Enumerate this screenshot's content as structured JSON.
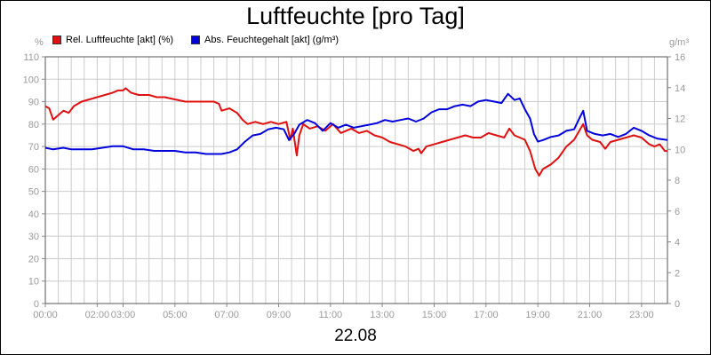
{
  "title": "Luftfeuchte [pro Tag]",
  "date_label": "22.08",
  "legend": [
    {
      "label": "Rel. Luftfeuchte [akt] (%)",
      "color": "#e01010"
    },
    {
      "label": "Abs. Feuchtegehalt [akt] (g/m³)",
      "color": "#0000dd"
    }
  ],
  "units": {
    "left": "%",
    "right": "g/m³"
  },
  "chart_data": {
    "type": "line",
    "title": "Luftfeuchte [pro Tag]",
    "xlabel": "22.08",
    "x_ticks": [
      "00:00",
      "02:00",
      "03:00",
      "05:00",
      "07:00",
      "09:00",
      "11:00",
      "13:00",
      "15:00",
      "17:00",
      "19:00",
      "21:00",
      "23:00"
    ],
    "x_tick_hours": [
      0,
      2,
      3,
      5,
      7,
      9,
      11,
      13,
      15,
      17,
      19,
      21,
      23
    ],
    "xlim_hours": [
      0,
      24
    ],
    "y_left": {
      "unit": "%",
      "lim": [
        0,
        110
      ],
      "ticks": [
        "0",
        "10",
        "20",
        "30",
        "40",
        "50",
        "60",
        "70",
        "80",
        "90",
        "100",
        "110"
      ]
    },
    "y_right": {
      "unit": "g/m³",
      "lim": [
        0,
        16
      ],
      "ticks": [
        "0",
        "2",
        "4",
        "6",
        "8",
        "10",
        "12",
        "14",
        "16"
      ]
    },
    "grid": true,
    "legend_position": "top-left",
    "series": [
      {
        "name": "Rel. Luftfeuchte [akt] (%)",
        "color": "#e01010",
        "axis": "left",
        "points": [
          [
            0.0,
            88
          ],
          [
            0.15,
            87
          ],
          [
            0.3,
            82
          ],
          [
            0.5,
            84
          ],
          [
            0.7,
            86
          ],
          [
            0.9,
            85
          ],
          [
            1.1,
            88
          ],
          [
            1.4,
            90
          ],
          [
            1.7,
            91
          ],
          [
            2.0,
            92
          ],
          [
            2.3,
            93
          ],
          [
            2.6,
            94
          ],
          [
            2.8,
            95
          ],
          [
            3.0,
            95
          ],
          [
            3.1,
            96
          ],
          [
            3.3,
            94
          ],
          [
            3.6,
            93
          ],
          [
            4.0,
            93
          ],
          [
            4.3,
            92
          ],
          [
            4.6,
            92
          ],
          [
            5.0,
            91
          ],
          [
            5.4,
            90
          ],
          [
            5.8,
            90
          ],
          [
            6.2,
            90
          ],
          [
            6.5,
            90
          ],
          [
            6.7,
            89
          ],
          [
            6.8,
            86
          ],
          [
            7.1,
            87
          ],
          [
            7.4,
            85
          ],
          [
            7.6,
            82
          ],
          [
            7.8,
            80
          ],
          [
            8.1,
            81
          ],
          [
            8.4,
            80
          ],
          [
            8.7,
            81
          ],
          [
            9.0,
            80
          ],
          [
            9.3,
            81
          ],
          [
            9.45,
            73
          ],
          [
            9.55,
            78
          ],
          [
            9.7,
            66
          ],
          [
            9.8,
            75
          ],
          [
            9.95,
            80
          ],
          [
            10.2,
            78
          ],
          [
            10.5,
            79
          ],
          [
            10.8,
            77
          ],
          [
            11.1,
            80
          ],
          [
            11.4,
            76
          ],
          [
            11.8,
            78
          ],
          [
            12.1,
            76
          ],
          [
            12.4,
            77
          ],
          [
            12.7,
            75
          ],
          [
            13.0,
            74
          ],
          [
            13.3,
            72
          ],
          [
            13.6,
            71
          ],
          [
            13.9,
            70
          ],
          [
            14.2,
            68
          ],
          [
            14.4,
            69
          ],
          [
            14.5,
            67
          ],
          [
            14.7,
            70
          ],
          [
            15.0,
            71
          ],
          [
            15.3,
            72
          ],
          [
            15.6,
            73
          ],
          [
            15.9,
            74
          ],
          [
            16.2,
            75
          ],
          [
            16.5,
            74
          ],
          [
            16.8,
            74
          ],
          [
            17.1,
            76
          ],
          [
            17.4,
            75
          ],
          [
            17.7,
            74
          ],
          [
            17.9,
            78
          ],
          [
            18.1,
            75
          ],
          [
            18.3,
            74
          ],
          [
            18.5,
            73
          ],
          [
            18.7,
            68
          ],
          [
            18.9,
            60
          ],
          [
            19.05,
            57
          ],
          [
            19.2,
            60
          ],
          [
            19.5,
            62
          ],
          [
            19.8,
            65
          ],
          [
            20.1,
            70
          ],
          [
            20.4,
            73
          ],
          [
            20.6,
            77
          ],
          [
            20.75,
            80
          ],
          [
            20.9,
            75
          ],
          [
            21.1,
            73
          ],
          [
            21.4,
            72
          ],
          [
            21.6,
            69
          ],
          [
            21.8,
            72
          ],
          [
            22.1,
            73
          ],
          [
            22.4,
            74
          ],
          [
            22.7,
            75
          ],
          [
            23.0,
            74
          ],
          [
            23.3,
            71
          ],
          [
            23.5,
            70
          ],
          [
            23.7,
            71
          ],
          [
            23.9,
            68
          ],
          [
            24.0,
            68
          ]
        ]
      },
      {
        "name": "Abs. Feuchtegehalt [akt] (g/m³)",
        "color": "#0000dd",
        "axis": "right",
        "points": [
          [
            0.0,
            10.1
          ],
          [
            0.3,
            10.0
          ],
          [
            0.7,
            10.1
          ],
          [
            1.0,
            10.0
          ],
          [
            1.4,
            10.0
          ],
          [
            1.8,
            10.0
          ],
          [
            2.2,
            10.1
          ],
          [
            2.6,
            10.2
          ],
          [
            3.0,
            10.2
          ],
          [
            3.4,
            10.0
          ],
          [
            3.8,
            10.0
          ],
          [
            4.2,
            9.9
          ],
          [
            4.6,
            9.9
          ],
          [
            5.0,
            9.9
          ],
          [
            5.4,
            9.8
          ],
          [
            5.8,
            9.8
          ],
          [
            6.2,
            9.7
          ],
          [
            6.5,
            9.7
          ],
          [
            6.8,
            9.7
          ],
          [
            7.1,
            9.8
          ],
          [
            7.4,
            10.0
          ],
          [
            7.7,
            10.5
          ],
          [
            8.0,
            10.9
          ],
          [
            8.3,
            11.0
          ],
          [
            8.6,
            11.3
          ],
          [
            8.9,
            11.4
          ],
          [
            9.2,
            11.3
          ],
          [
            9.4,
            10.6
          ],
          [
            9.6,
            11.0
          ],
          [
            9.8,
            11.6
          ],
          [
            10.1,
            11.9
          ],
          [
            10.4,
            11.7
          ],
          [
            10.7,
            11.2
          ],
          [
            11.0,
            11.7
          ],
          [
            11.3,
            11.4
          ],
          [
            11.6,
            11.6
          ],
          [
            11.9,
            11.4
          ],
          [
            12.2,
            11.5
          ],
          [
            12.5,
            11.6
          ],
          [
            12.8,
            11.7
          ],
          [
            13.1,
            11.9
          ],
          [
            13.4,
            11.8
          ],
          [
            13.7,
            11.9
          ],
          [
            14.0,
            12.0
          ],
          [
            14.3,
            11.8
          ],
          [
            14.6,
            12.0
          ],
          [
            14.9,
            12.4
          ],
          [
            15.2,
            12.6
          ],
          [
            15.5,
            12.6
          ],
          [
            15.8,
            12.8
          ],
          [
            16.1,
            12.9
          ],
          [
            16.4,
            12.8
          ],
          [
            16.7,
            13.1
          ],
          [
            17.0,
            13.2
          ],
          [
            17.3,
            13.1
          ],
          [
            17.6,
            13.0
          ],
          [
            17.85,
            13.6
          ],
          [
            18.1,
            13.2
          ],
          [
            18.3,
            13.3
          ],
          [
            18.5,
            12.6
          ],
          [
            18.7,
            12.0
          ],
          [
            18.85,
            11.0
          ],
          [
            19.0,
            10.5
          ],
          [
            19.2,
            10.6
          ],
          [
            19.5,
            10.8
          ],
          [
            19.8,
            10.9
          ],
          [
            20.1,
            11.2
          ],
          [
            20.4,
            11.3
          ],
          [
            20.6,
            12.0
          ],
          [
            20.75,
            12.5
          ],
          [
            20.9,
            11.2
          ],
          [
            21.2,
            11.0
          ],
          [
            21.5,
            10.9
          ],
          [
            21.8,
            11.0
          ],
          [
            22.1,
            10.8
          ],
          [
            22.4,
            11.0
          ],
          [
            22.7,
            11.4
          ],
          [
            23.0,
            11.2
          ],
          [
            23.3,
            10.9
          ],
          [
            23.6,
            10.7
          ],
          [
            24.0,
            10.6
          ]
        ]
      }
    ]
  }
}
